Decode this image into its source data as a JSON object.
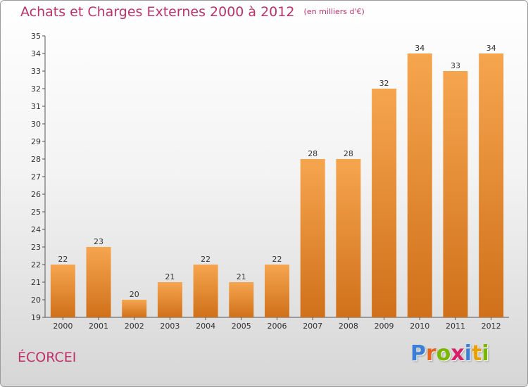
{
  "header": {
    "title": "Achats et Charges Externes 2000 à 2012",
    "unit": "(en milliers d'€)"
  },
  "commune": "ÉCORCEI",
  "logo": {
    "text": "Proxiti",
    "letters": [
      {
        "char": "P",
        "color": "#3a7fd5"
      },
      {
        "char": "r",
        "color": "#e8641e"
      },
      {
        "char": "o",
        "color": "#7ab800"
      },
      {
        "char": "x",
        "color": "#d8206a"
      },
      {
        "char": "i",
        "color": "#3a7fd5"
      },
      {
        "char": "t",
        "color": "#e8a000"
      },
      {
        "char": "i",
        "color": "#7ab800"
      }
    ]
  },
  "colors": {
    "bar_light": "#f6a54f",
    "bar_dark": "#d0701a",
    "axis": "#555555",
    "grid": "#cccccc",
    "title": "#c0306a"
  },
  "chart_data": {
    "type": "bar",
    "title": "Achats et Charges Externes 2000 à 2012",
    "subtitle": "(en milliers d'€)",
    "xlabel": "",
    "ylabel": "",
    "categories": [
      "2000",
      "2001",
      "2002",
      "2003",
      "2004",
      "2005",
      "2006",
      "2007",
      "2008",
      "2009",
      "2010",
      "2011",
      "2012"
    ],
    "values": [
      22,
      23,
      20,
      21,
      22,
      21,
      22,
      28,
      28,
      32,
      34,
      33,
      34
    ],
    "ylim": [
      19,
      35
    ],
    "yticks": [
      19,
      20,
      21,
      22,
      23,
      24,
      25,
      26,
      27,
      28,
      29,
      30,
      31,
      32,
      33,
      34,
      35
    ],
    "grid": false,
    "legend": "none",
    "data_labels": true
  }
}
